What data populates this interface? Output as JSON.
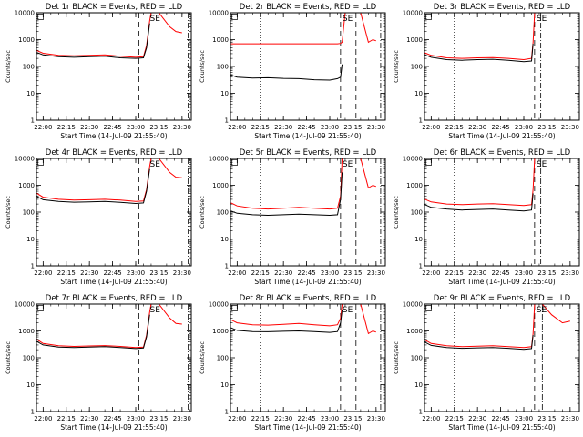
{
  "figure": {
    "x_tick_labels": [
      "22:00",
      "22:15",
      "22:30",
      "22:45",
      "23:00",
      "23:15",
      "23:30"
    ],
    "y_tick_labels": [
      "1",
      "10",
      "100",
      "1000",
      "10000"
    ],
    "y_axis_label": "Counts/sec",
    "x_axis_label": "Start Time (14-Jul-09 21:55:40)",
    "colors": {
      "events": "#000000",
      "lld": "#ff0000"
    }
  },
  "chart_data": [
    {
      "type": "line",
      "title": "Det 1r BLACK = Events, RED = LLD",
      "xlabel": "Start Time (14-Jul-09 21:55:40)",
      "ylabel": "Counts/sec",
      "ylog": true,
      "ylim": [
        1,
        10000
      ],
      "xlim": [
        "21:55:40",
        "23:36"
      ],
      "corner_label": "SE",
      "series": [
        {
          "x": [
            "21:56",
            "22:00",
            "22:10",
            "22:20",
            "22:30",
            "22:40",
            "22:50",
            "23:00",
            "23:05",
            "23:07",
            "23:09",
            "23:10",
            "23:15",
            "23:22",
            "23:26",
            "23:30"
          ],
          "values": [
            390,
            310,
            260,
            250,
            260,
            270,
            240,
            220,
            230,
            600,
            5000,
            10000,
            10000,
            3000,
            2000,
            1800
          ]
        },
        {
          "x": [
            "21:56",
            "22:00",
            "22:10",
            "22:20",
            "22:30",
            "22:40",
            "22:50",
            "23:00",
            "23:05",
            "23:07",
            "23:09"
          ],
          "values": [
            330,
            270,
            230,
            220,
            230,
            240,
            210,
            200,
            210,
            500,
            4000
          ]
        }
      ],
      "vlines": [
        "23:02",
        "23:08",
        "23:34"
      ]
    },
    {
      "type": "line",
      "title": "Det 2r BLACK = Events, RED = LLD",
      "xlabel": "Start Time (14-Jul-09 21:55:40)",
      "ylabel": "Counts/sec",
      "ylog": true,
      "ylim": [
        1,
        10000
      ],
      "xlim": [
        "21:55:40",
        "23:36"
      ],
      "corner_label": "SE",
      "series": [
        {
          "x": [
            "21:56",
            "22:00",
            "22:20",
            "22:40",
            "23:00",
            "23:05",
            "23:07",
            "23:08",
            "23:10",
            "23:15",
            "23:20",
            "23:25",
            "23:28",
            "23:30"
          ],
          "values": [
            700,
            700,
            700,
            700,
            700,
            700,
            720,
            800,
            10000,
            10000,
            10000,
            800,
            1000,
            900
          ]
        },
        {
          "x": [
            "21:56",
            "22:00",
            "22:10",
            "22:20",
            "22:30",
            "22:40",
            "22:50",
            "23:00",
            "23:05",
            "23:07",
            "23:08"
          ],
          "values": [
            48,
            40,
            37,
            38,
            36,
            35,
            32,
            31,
            35,
            40,
            120
          ]
        }
      ],
      "vlines": [
        "22:15",
        "23:07",
        "23:17",
        "23:33"
      ]
    },
    {
      "type": "line",
      "title": "Det 3r BLACK = Events, RED = LLD",
      "xlabel": "Start Time (14-Jul-09 21:55:40)",
      "ylabel": "Counts/sec",
      "ylog": true,
      "ylim": [
        1,
        10000
      ],
      "xlim": [
        "21:55:40",
        "23:36"
      ],
      "corner_label": "SE",
      "series": [
        {
          "x": [
            "21:56",
            "22:00",
            "22:10",
            "22:20",
            "22:30",
            "22:40",
            "22:50",
            "23:00",
            "23:05",
            "23:06",
            "23:07",
            "23:10",
            "23:20",
            "23:30"
          ],
          "values": [
            320,
            260,
            210,
            200,
            210,
            215,
            200,
            180,
            200,
            800,
            10000,
            10000,
            10000,
            10000
          ]
        },
        {
          "x": [
            "21:56",
            "22:00",
            "22:10",
            "22:20",
            "22:30",
            "22:40",
            "22:50",
            "23:00",
            "23:05",
            "23:06"
          ],
          "values": [
            270,
            220,
            180,
            170,
            180,
            185,
            170,
            150,
            160,
            700
          ]
        }
      ],
      "vlines": [
        "22:15",
        "23:07",
        "23:11"
      ]
    },
    {
      "type": "line",
      "title": "Det 4r BLACK = Events, RED = LLD",
      "xlabel": "Start Time (14-Jul-09 21:55:40)",
      "ylabel": "Counts/sec",
      "ylog": true,
      "ylim": [
        1,
        10000
      ],
      "xlim": [
        "21:55:40",
        "23:36"
      ],
      "corner_label": "SE",
      "series": [
        {
          "x": [
            "21:56",
            "22:00",
            "22:10",
            "22:20",
            "22:30",
            "22:40",
            "22:50",
            "23:00",
            "23:05",
            "23:07",
            "23:09",
            "23:10",
            "23:15",
            "23:22",
            "23:26",
            "23:30"
          ],
          "values": [
            500,
            360,
            300,
            280,
            290,
            300,
            280,
            250,
            260,
            700,
            5000,
            10000,
            10000,
            3000,
            2000,
            1900
          ]
        },
        {
          "x": [
            "21:56",
            "22:00",
            "22:10",
            "22:20",
            "22:30",
            "22:40",
            "22:50",
            "23:00",
            "23:05",
            "23:07",
            "23:09"
          ],
          "values": [
            380,
            290,
            250,
            235,
            240,
            250,
            230,
            210,
            220,
            600,
            4000
          ]
        }
      ],
      "vlines": [
        "23:02",
        "23:08",
        "23:34"
      ]
    },
    {
      "type": "line",
      "title": "Det 5r BLACK = Events, RED = LLD",
      "xlabel": "Start Time (14-Jul-09 21:55:40)",
      "ylabel": "Counts/sec",
      "ylog": true,
      "ylim": [
        1,
        10000
      ],
      "xlim": [
        "21:55:40",
        "23:36"
      ],
      "corner_label": "SE",
      "series": [
        {
          "x": [
            "21:56",
            "22:00",
            "22:10",
            "22:20",
            "22:30",
            "22:40",
            "22:50",
            "23:00",
            "23:05",
            "23:07",
            "23:08",
            "23:10",
            "23:20",
            "23:25",
            "23:28",
            "23:30"
          ],
          "values": [
            220,
            170,
            140,
            130,
            140,
            150,
            140,
            130,
            140,
            400,
            10000,
            10000,
            10000,
            800,
            1000,
            900
          ]
        },
        {
          "x": [
            "21:56",
            "22:00",
            "22:10",
            "22:20",
            "22:30",
            "22:40",
            "22:50",
            "23:00",
            "23:05",
            "23:07",
            "23:08"
          ],
          "values": [
            110,
            90,
            80,
            76,
            80,
            84,
            80,
            76,
            80,
            300,
            3000
          ]
        }
      ],
      "vlines": [
        "22:15",
        "23:07",
        "23:17",
        "23:33"
      ]
    },
    {
      "type": "line",
      "title": "Det 6r BLACK = Events, RED = LLD",
      "xlabel": "Start Time (14-Jul-09 21:55:40)",
      "ylabel": "Counts/sec",
      "ylog": true,
      "ylim": [
        1,
        10000
      ],
      "xlim": [
        "21:55:40",
        "23:36"
      ],
      "corner_label": "SE",
      "series": [
        {
          "x": [
            "21:56",
            "22:00",
            "22:10",
            "22:20",
            "22:30",
            "22:40",
            "22:50",
            "23:00",
            "23:05",
            "23:06",
            "23:07",
            "23:10",
            "23:20",
            "23:30"
          ],
          "values": [
            300,
            240,
            200,
            190,
            200,
            205,
            190,
            175,
            190,
            700,
            10000,
            10000,
            10000,
            10000
          ]
        },
        {
          "x": [
            "21:56",
            "22:00",
            "22:10",
            "22:20",
            "22:30",
            "22:40",
            "22:50",
            "23:00",
            "23:05",
            "23:06"
          ],
          "values": [
            190,
            150,
            130,
            120,
            125,
            130,
            120,
            110,
            120,
            500
          ]
        }
      ],
      "vlines": [
        "22:15",
        "23:07",
        "23:11"
      ]
    },
    {
      "type": "line",
      "title": "Det 7r BLACK = Events, RED = LLD",
      "xlabel": "Start Time (14-Jul-09 21:55:40)",
      "ylabel": "Counts/sec",
      "ylog": true,
      "ylim": [
        1,
        10000
      ],
      "xlim": [
        "21:55:40",
        "23:36"
      ],
      "corner_label": "SE",
      "series": [
        {
          "x": [
            "21:56",
            "22:00",
            "22:10",
            "22:20",
            "22:30",
            "22:40",
            "22:50",
            "23:00",
            "23:05",
            "23:07",
            "23:09",
            "23:10",
            "23:15",
            "23:22",
            "23:26",
            "23:30"
          ],
          "values": [
            480,
            340,
            280,
            265,
            275,
            285,
            265,
            240,
            250,
            700,
            5000,
            10000,
            10000,
            3000,
            1900,
            1800
          ]
        },
        {
          "x": [
            "21:56",
            "22:00",
            "22:10",
            "22:20",
            "22:30",
            "22:40",
            "22:50",
            "23:00",
            "23:05",
            "23:07",
            "23:09"
          ],
          "values": [
            400,
            300,
            250,
            240,
            250,
            260,
            240,
            220,
            230,
            600,
            4000
          ]
        }
      ],
      "vlines": [
        "23:02",
        "23:08",
        "23:34"
      ]
    },
    {
      "type": "line",
      "title": "Det 8r BLACK = Events, RED = LLD",
      "xlabel": "Start Time (14-Jul-09 21:55:40)",
      "ylabel": "Counts/sec",
      "ylog": true,
      "ylim": [
        1,
        10000
      ],
      "xlim": [
        "21:55:40",
        "23:36"
      ],
      "corner_label": "SE",
      "series": [
        {
          "x": [
            "21:56",
            "22:00",
            "22:10",
            "22:20",
            "22:30",
            "22:40",
            "22:50",
            "23:00",
            "23:05",
            "23:07",
            "23:08",
            "23:10",
            "23:20",
            "23:25",
            "23:28",
            "23:30"
          ],
          "values": [
            2600,
            2000,
            1700,
            1650,
            1750,
            1900,
            1700,
            1550,
            1700,
            3000,
            10000,
            10000,
            10000,
            800,
            1000,
            900
          ]
        },
        {
          "x": [
            "21:56",
            "22:00",
            "22:10",
            "22:20",
            "22:30",
            "22:40",
            "22:50",
            "23:00",
            "23:05",
            "23:07",
            "23:08"
          ],
          "values": [
            1300,
            1050,
            950,
            930,
            970,
            1000,
            950,
            880,
            950,
            2000,
            6000
          ]
        }
      ],
      "vlines": [
        "22:15",
        "23:07",
        "23:17",
        "23:33"
      ]
    },
    {
      "type": "line",
      "title": "Det 9r BLACK = Events, RED = LLD",
      "xlabel": "Start Time (14-Jul-09 21:55:40)",
      "ylabel": "Counts/sec",
      "ylog": true,
      "ylim": [
        1,
        10000
      ],
      "xlim": [
        "21:55:40",
        "23:36"
      ],
      "corner_label": "SE",
      "series": [
        {
          "x": [
            "21:56",
            "22:00",
            "22:10",
            "22:20",
            "22:30",
            "22:40",
            "22:50",
            "23:00",
            "23:05",
            "23:06",
            "23:07",
            "23:12",
            "23:18",
            "23:25",
            "23:30"
          ],
          "values": [
            460,
            340,
            280,
            260,
            270,
            280,
            260,
            240,
            260,
            800,
            10000,
            10000,
            4000,
            2000,
            2300
          ]
        },
        {
          "x": [
            "21:56",
            "22:00",
            "22:10",
            "22:20",
            "22:30",
            "22:40",
            "22:50",
            "23:00",
            "23:05",
            "23:06"
          ],
          "values": [
            380,
            290,
            240,
            225,
            235,
            240,
            225,
            205,
            220,
            700
          ]
        }
      ],
      "vlines": [
        "22:15",
        "23:07",
        "23:12"
      ]
    }
  ]
}
